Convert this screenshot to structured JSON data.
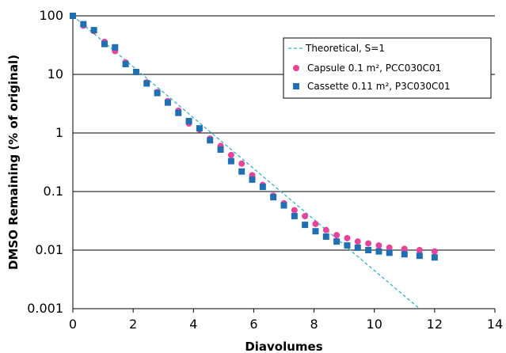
{
  "chart_data": {
    "type": "scatter",
    "title": "",
    "xlabel": "Diavolumes",
    "ylabel": "DMSO  Remaining (% of original)",
    "xlim": [
      0,
      14
    ],
    "ylim": [
      0.001,
      100
    ],
    "yscale": "log",
    "grid": "horizontal",
    "legend_position": "top-right",
    "x_ticks": [
      0,
      2,
      4,
      6,
      8,
      10,
      12,
      14
    ],
    "x_tick_labels": [
      "0",
      "2",
      "4",
      "6",
      "8",
      "10",
      "12",
      "14"
    ],
    "y_ticks": [
      0.001,
      0.01,
      0.1,
      1,
      10,
      100
    ],
    "y_tick_labels": [
      "0.001",
      "0.01",
      "0.1",
      "1",
      "10",
      "100"
    ],
    "series": [
      {
        "name": "Theoretical, S=1",
        "kind": "dashed-line",
        "color": "#2bb5c9",
        "x": [
          0,
          11.5
        ],
        "y": [
          100,
          0.001
        ]
      },
      {
        "name": "Capsule 0.1 m², PCC030C01",
        "kind": "circle",
        "color": "#e8439a",
        "x": [
          0,
          0.35,
          0.7,
          1.05,
          1.4,
          1.75,
          2.1,
          2.45,
          2.8,
          3.15,
          3.5,
          3.85,
          4.2,
          4.55,
          4.9,
          5.25,
          5.6,
          5.95,
          6.3,
          6.65,
          7.0,
          7.35,
          7.7,
          8.05,
          8.4,
          8.75,
          9.1,
          9.45,
          9.8,
          10.15,
          10.5,
          11.0,
          11.5,
          12.0
        ],
        "y": [
          100,
          68,
          55,
          36,
          25,
          16,
          11,
          7.3,
          5.0,
          3.5,
          2.4,
          1.45,
          1.15,
          0.8,
          0.6,
          0.42,
          0.3,
          0.19,
          0.13,
          0.085,
          0.063,
          0.048,
          0.038,
          0.028,
          0.022,
          0.018,
          0.016,
          0.014,
          0.013,
          0.012,
          0.011,
          0.0105,
          0.01,
          0.0095
        ]
      },
      {
        "name": "Cassette 0.11 m², P3C030C01",
        "kind": "square",
        "color": "#1f6fb2",
        "x": [
          0,
          0.35,
          0.7,
          1.05,
          1.4,
          1.75,
          2.1,
          2.45,
          2.8,
          3.15,
          3.5,
          3.85,
          4.2,
          4.55,
          4.9,
          5.25,
          5.6,
          5.95,
          6.3,
          6.65,
          7.0,
          7.35,
          7.7,
          8.05,
          8.4,
          8.75,
          9.1,
          9.45,
          9.8,
          10.15,
          10.5,
          11.0,
          11.5,
          12.0
        ],
        "y": [
          100,
          72,
          57,
          33,
          29,
          15,
          11,
          7.0,
          4.8,
          3.3,
          2.2,
          1.6,
          1.2,
          0.75,
          0.52,
          0.33,
          0.22,
          0.16,
          0.12,
          0.08,
          0.058,
          0.038,
          0.027,
          0.021,
          0.017,
          0.014,
          0.012,
          0.011,
          0.01,
          0.0095,
          0.009,
          0.0085,
          0.008,
          0.0075
        ]
      }
    ]
  }
}
